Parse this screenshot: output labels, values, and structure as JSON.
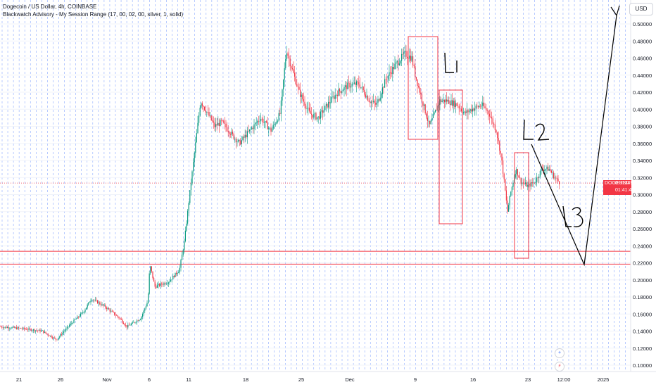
{
  "header": {
    "title": "Dogecoin / US Dollar, 4h, COINBASE",
    "indicator": "Blackwatch Advisory - My Session Range (17, 00, 02, 00, silver, 1, solid)"
  },
  "unit_button": "USD",
  "price_tag": {
    "symbol": "DOGEUSD",
    "price": "0.31349",
    "countdown": "01:41:46"
  },
  "colors": {
    "up": "#089981",
    "down": "#f23645",
    "grid": "#2962ff",
    "box": "#f23645"
  },
  "chart_data": {
    "type": "candlestick",
    "ylim": [
      0.09,
      0.51
    ],
    "y_ticks": [
      "0.50000",
      "0.48000",
      "0.46000",
      "0.44000",
      "0.42000",
      "0.40000",
      "0.38000",
      "0.36000",
      "0.34000",
      "0.32000",
      "0.30000",
      "0.28000",
      "0.26000",
      "0.24000",
      "0.22000",
      "0.20000",
      "0.18000",
      "0.16000",
      "0.14000",
      "0.12000",
      "0.10000"
    ],
    "x_labels": [
      "21",
      "26",
      "Nov",
      "6",
      "11",
      "18",
      "25",
      "Dec",
      "9",
      "16",
      "23",
      "12:00",
      "2025"
    ],
    "current_price": 0.31349,
    "horizontal_lines": [
      0.2335,
      0.2185
    ],
    "annotations": [
      "L1",
      "L2",
      "L3"
    ],
    "price_path": [
      [
        0,
        0.145
      ],
      [
        30,
        0.143
      ],
      [
        60,
        0.14
      ],
      [
        80,
        0.13
      ],
      [
        100,
        0.148
      ],
      [
        118,
        0.162
      ],
      [
        130,
        0.178
      ],
      [
        150,
        0.168
      ],
      [
        170,
        0.155
      ],
      [
        180,
        0.145
      ],
      [
        200,
        0.155
      ],
      [
        210,
        0.175
      ],
      [
        213,
        0.218
      ],
      [
        220,
        0.192
      ],
      [
        240,
        0.198
      ],
      [
        255,
        0.212
      ],
      [
        262,
        0.245
      ],
      [
        268,
        0.29
      ],
      [
        275,
        0.34
      ],
      [
        285,
        0.41
      ],
      [
        295,
        0.395
      ],
      [
        305,
        0.38
      ],
      [
        315,
        0.385
      ],
      [
        330,
        0.37
      ],
      [
        340,
        0.36
      ],
      [
        355,
        0.375
      ],
      [
        370,
        0.39
      ],
      [
        385,
        0.375
      ],
      [
        398,
        0.395
      ],
      [
        407,
        0.47
      ],
      [
        412,
        0.455
      ],
      [
        425,
        0.42
      ],
      [
        440,
        0.395
      ],
      [
        452,
        0.39
      ],
      [
        465,
        0.405
      ],
      [
        480,
        0.42
      ],
      [
        495,
        0.428
      ],
      [
        510,
        0.43
      ],
      [
        525,
        0.41
      ],
      [
        535,
        0.405
      ],
      [
        548,
        0.435
      ],
      [
        560,
        0.45
      ],
      [
        575,
        0.465
      ],
      [
        585,
        0.46
      ],
      [
        590,
        0.44
      ],
      [
        600,
        0.41
      ],
      [
        610,
        0.38
      ],
      [
        615,
        0.39
      ],
      [
        625,
        0.41
      ],
      [
        635,
        0.41
      ],
      [
        650,
        0.405
      ],
      [
        660,
        0.395
      ],
      [
        670,
        0.4
      ],
      [
        685,
        0.405
      ],
      [
        695,
        0.395
      ],
      [
        705,
        0.375
      ],
      [
        712,
        0.345
      ],
      [
        717,
        0.31
      ],
      [
        721,
        0.28
      ],
      [
        725,
        0.3
      ],
      [
        733,
        0.33
      ],
      [
        740,
        0.315
      ],
      [
        750,
        0.31
      ],
      [
        760,
        0.315
      ],
      [
        770,
        0.33
      ],
      [
        780,
        0.33
      ],
      [
        788,
        0.32
      ],
      [
        795,
        0.314
      ]
    ]
  }
}
